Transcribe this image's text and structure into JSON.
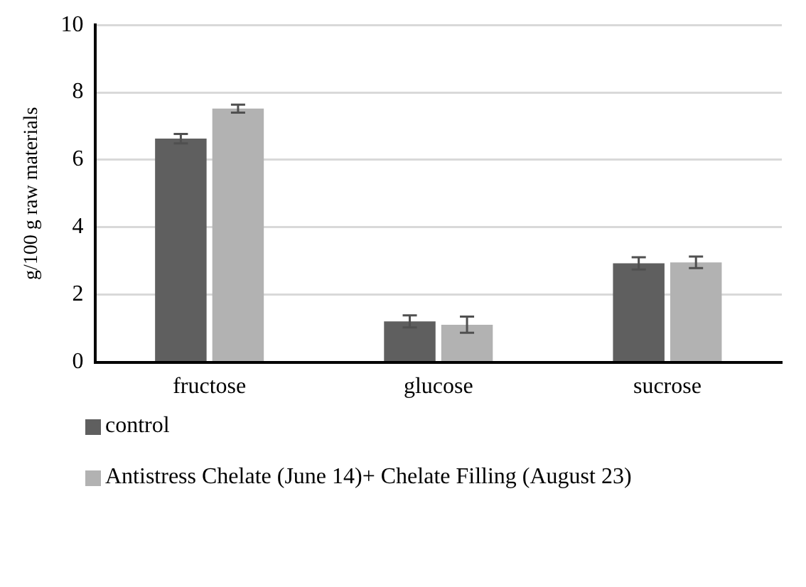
{
  "chart_data": {
    "type": "bar",
    "ylabel": "g/100 g raw materials",
    "categories": [
      "fructose",
      "glucose",
      "sucrose"
    ],
    "series": [
      {
        "name": "control",
        "color": "#5f5f5f",
        "values": [
          6.63,
          1.21,
          2.93
        ],
        "errors": [
          0.14,
          0.18,
          0.18
        ]
      },
      {
        "name": "Antistress Chelate (June 14)+ Chelate Filling (August 23)",
        "color": "#b2b2b2",
        "values": [
          7.52,
          1.11,
          2.96
        ],
        "errors": [
          0.12,
          0.24,
          0.17
        ]
      }
    ],
    "ylim": [
      0,
      10
    ],
    "yticks": [
      0,
      2,
      4,
      6,
      8,
      10
    ],
    "grid": "y",
    "legend": "bottom"
  }
}
